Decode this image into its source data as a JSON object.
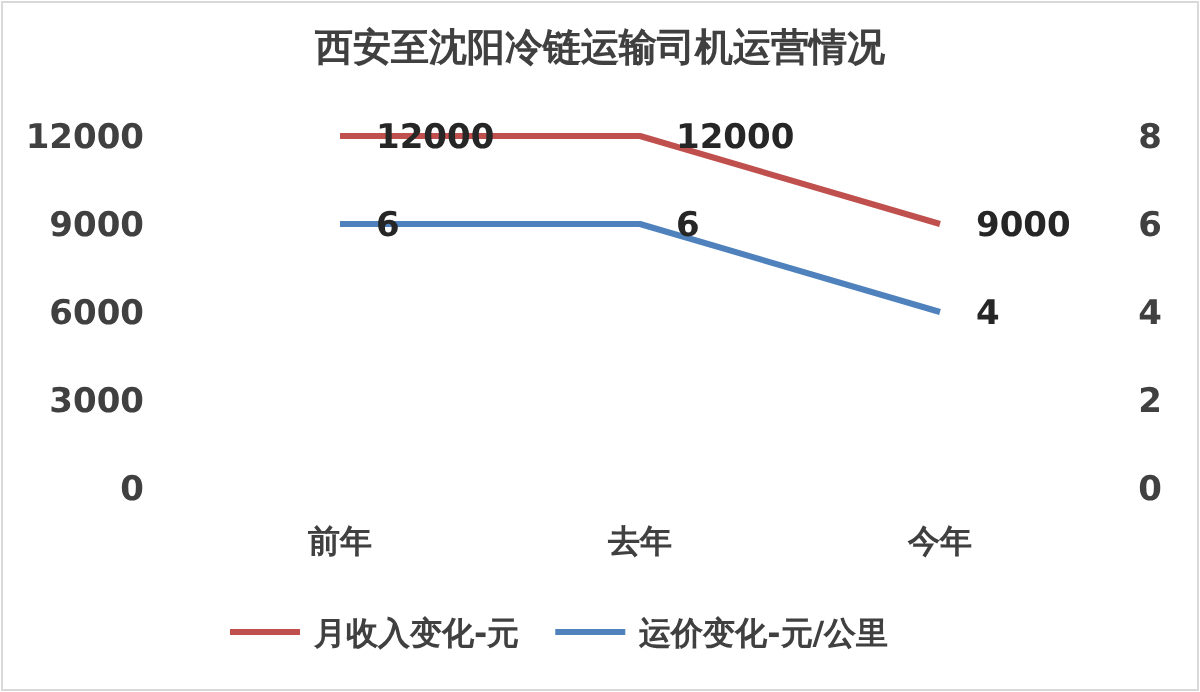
{
  "chart_data": {
    "type": "line",
    "title": "西安至沈阳冷链运输司机运营情况",
    "categories": [
      "前年",
      "去年",
      "今年"
    ],
    "series": [
      {
        "name": "月收入变化-元",
        "color": "#c0504d",
        "values": [
          12000,
          12000,
          9000
        ]
      },
      {
        "name": "运价变化-元/公里",
        "color": "#4f81bd",
        "values": [
          6,
          6,
          4
        ],
        "axis": "y2"
      }
    ],
    "ylim": [
      0,
      12000
    ],
    "yticks": [
      0,
      3000,
      6000,
      9000,
      12000
    ],
    "y2lim": [
      0,
      8
    ],
    "y2ticks": [
      0,
      2,
      4,
      6,
      8
    ],
    "data_labels": true,
    "legend": "bottom",
    "grid": false,
    "marker": "none",
    "line_style": "solid"
  }
}
